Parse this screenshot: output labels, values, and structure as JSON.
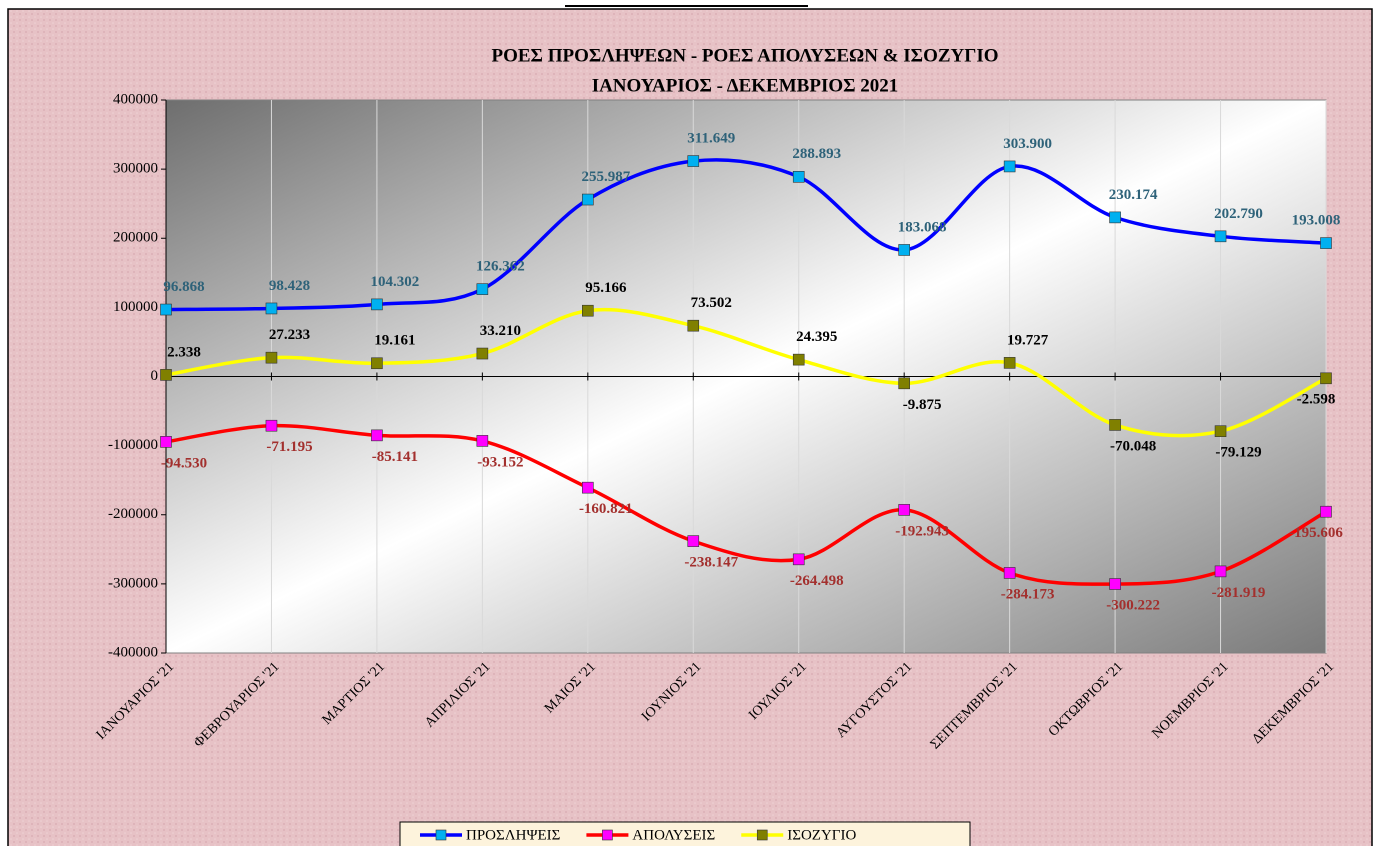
{
  "chart_data": {
    "type": "line",
    "title": "ΡΟΕΣ ΠΡΟΣΛΗΨΕΩΝ -  ΡΟΕΣ ΑΠΟΛΥΣΕΩΝ  & ΙΣΟΖΥΓΙΟ",
    "subtitle": "ΙΑΝΟΥΑΡΙΟΣ  -  ΔΕΚΕΜΒΡΙΟΣ  2021",
    "categories": [
      "ΙΑΝΟΥΑΡΙΟΣ '21",
      "ΦΕΒΡΟΥΑΡΙΟΣ '21",
      "ΜΑΡΤΙΟΣ '21",
      "ΑΠΡΙΛΙΟΣ '21",
      "ΜΑΙΟΣ '21",
      "ΙΟΥΝΙΟΣ '21",
      "ΙΟΥΛΙΟΣ '21",
      "ΑΥΓΟΥΣΤΟΣ '21",
      "ΣΕΠΤΕΜΒΡΙΟΣ '21",
      "ΟΚΤΩΒΡΙΟΣ '21",
      "ΝΟΕΜΒΡΙΟΣ '21",
      "ΔΕΚΕΜΒΡΙΟΣ '21"
    ],
    "series": [
      {
        "name": "ΠΡΟΣΛΗΨΕΙΣ",
        "color": "#0000ff",
        "marker_color": "#00b0f0",
        "label_color": "#2e6279",
        "values": [
          96868,
          98428,
          104302,
          126362,
          255987,
          311649,
          288893,
          183068,
          303900,
          230174,
          202790,
          193008
        ],
        "value_labels": [
          "96.868",
          "98.428",
          "104.302",
          "126.362",
          "255.987",
          "311.649",
          "288.893",
          "183.068",
          "303.900",
          "230.174",
          "202.790",
          "193.008"
        ]
      },
      {
        "name": "ΑΠΟΛΥΣΕΙΣ",
        "color": "#ff0000",
        "marker_color": "#ff00ff",
        "label_color": "#a3302e",
        "values": [
          -94530,
          -71195,
          -85141,
          -93152,
          -160821,
          -238147,
          -264498,
          -192943,
          -284173,
          -300222,
          -281919,
          -195606
        ],
        "value_labels": [
          "-94.530",
          "-71.195",
          "-85.141",
          "-93.152",
          "-160.821",
          "-238.147",
          "-264.498",
          "-192.943",
          "-284.173",
          "-300.222",
          "-281.919",
          "-195.606"
        ]
      },
      {
        "name": "ΙΣΟΖΥΓΙΟ",
        "color": "#ffff00",
        "marker_color": "#808000",
        "label_color": "#000000",
        "values": [
          2338,
          27233,
          19161,
          33210,
          95166,
          73502,
          24395,
          -9875,
          19727,
          -70048,
          -79129,
          -2598
        ],
        "value_labels": [
          "2.338",
          "27.233",
          "19.161",
          "33.210",
          "95.166",
          "73.502",
          "24.395",
          "-9.875",
          "19.727",
          "-70.048",
          "-79.129",
          "-2.598"
        ]
      }
    ],
    "ylim": [
      -400000,
      400000
    ],
    "yticks": [
      -400000,
      -300000,
      -200000,
      -100000,
      0,
      100000,
      200000,
      300000,
      400000
    ],
    "xgrid": true,
    "legend": "bottom"
  }
}
